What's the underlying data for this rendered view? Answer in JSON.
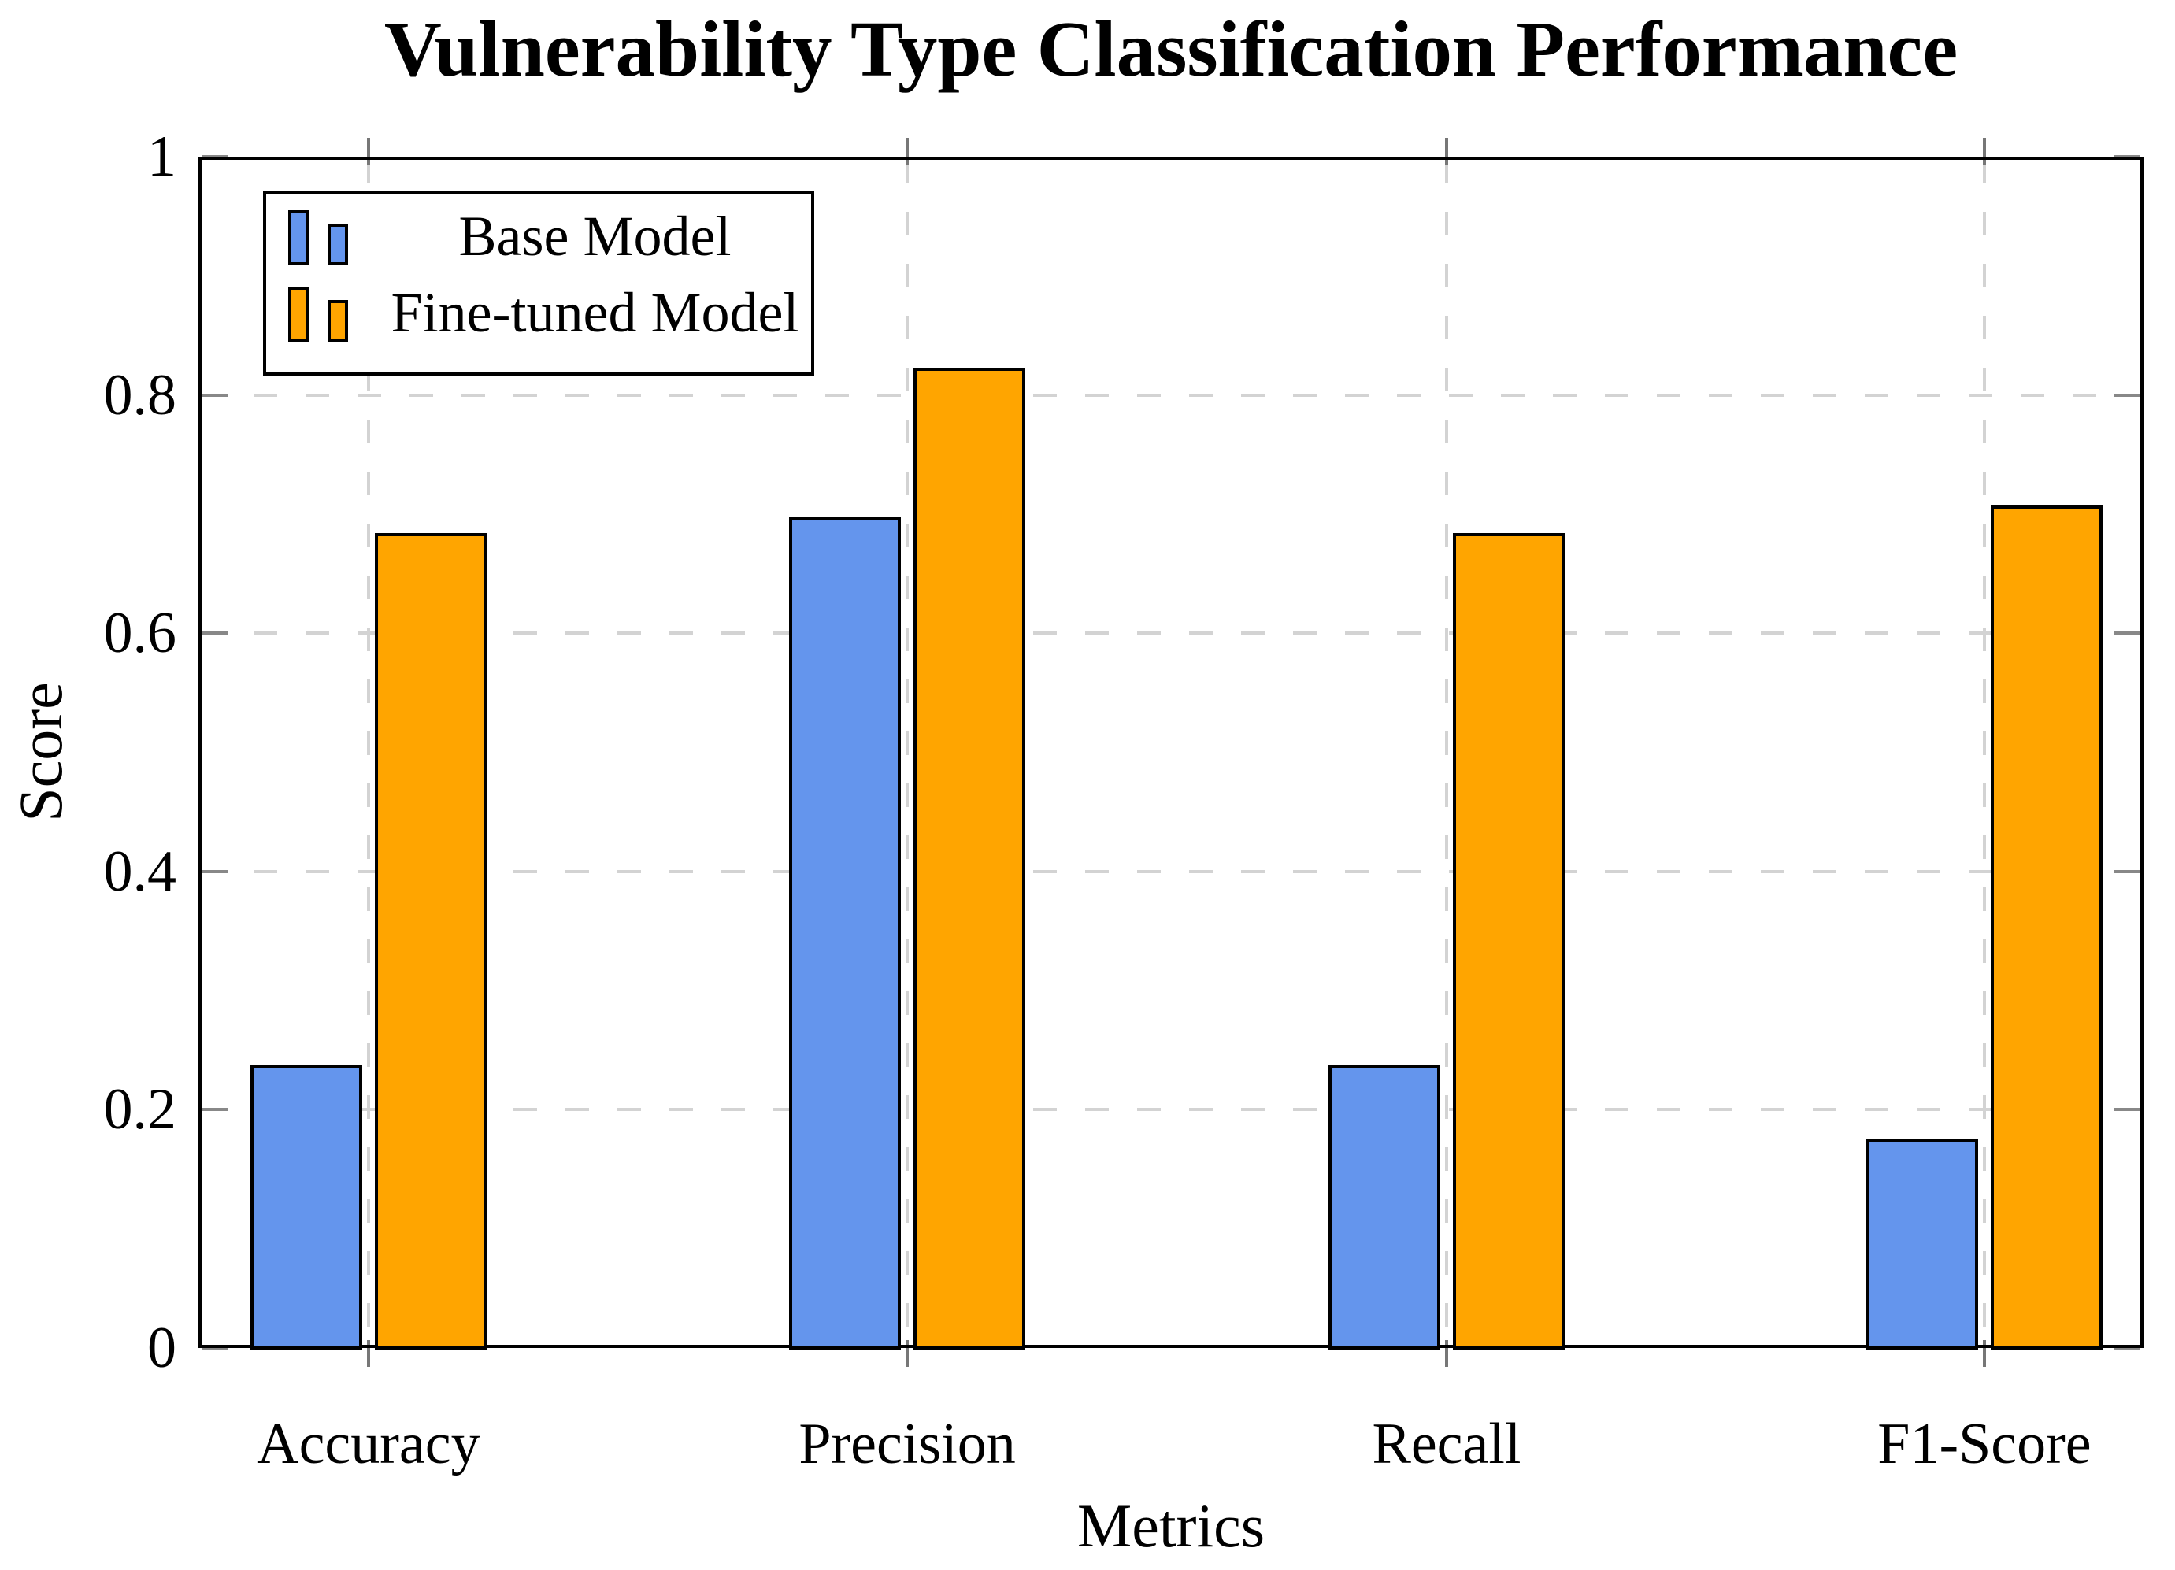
{
  "chart_data": {
    "type": "bar",
    "title": "Vulnerability Type Classification Performance",
    "xlabel": "Metrics",
    "ylabel": "Score",
    "categories": [
      "Accuracy",
      "Precision",
      "Recall",
      "F1-Score"
    ],
    "series": [
      {
        "name": "Base Model",
        "color": "#6495ED",
        "values": [
          0.238,
          0.697,
          0.238,
          0.175
        ]
      },
      {
        "name": "Fine-tuned Model",
        "color": "#FFA500",
        "values": [
          0.684,
          0.823,
          0.684,
          0.707
        ]
      }
    ],
    "ylim": [
      0,
      1
    ],
    "yticks": [
      0,
      0.2,
      0.4,
      0.6,
      0.8,
      1
    ],
    "ytick_labels": [
      "0",
      "0.2",
      "0.4",
      "0.6",
      "0.8",
      "1"
    ],
    "grid": "dashed-both-axes",
    "grid_color": "#D3D3D3",
    "tick_color": "#808080",
    "frame_color": "#000000",
    "legend_position": "top-left"
  }
}
